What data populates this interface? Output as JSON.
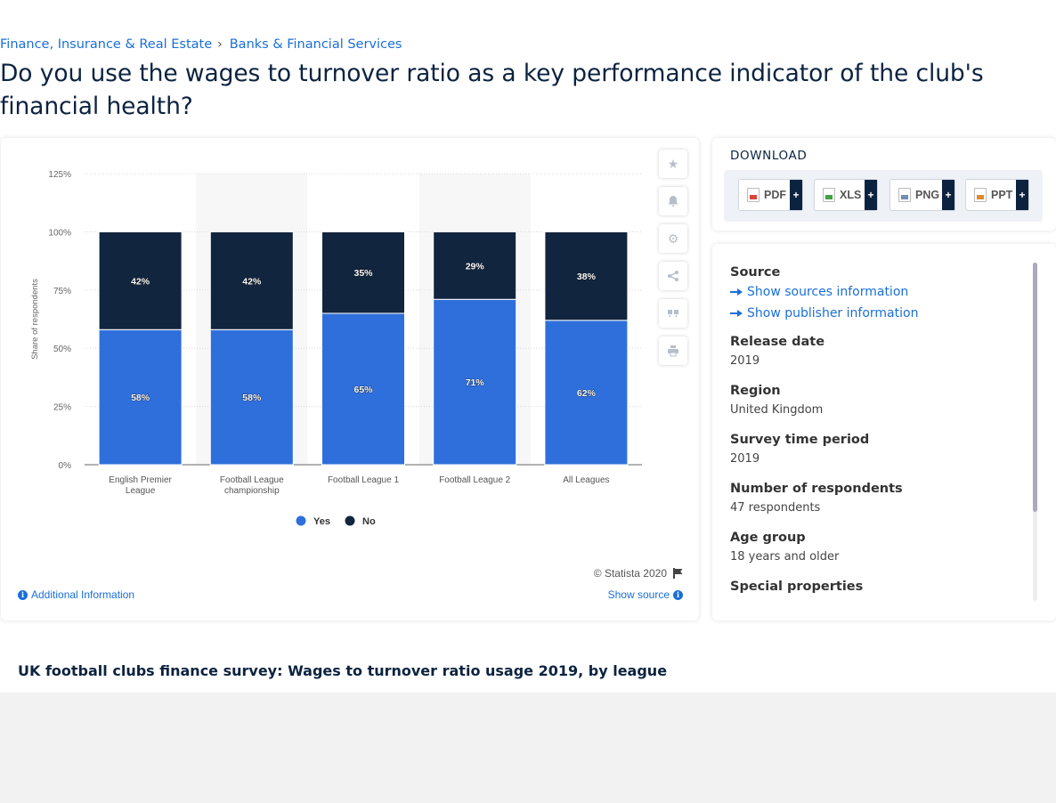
{
  "breadcrumb": {
    "items": [
      "Finance, Insurance & Real Estate",
      "Banks & Financial Services"
    ],
    "separator": "›"
  },
  "page_title": "Do you use the wages to turnover ratio as a key performance indicator of the club's financial health?",
  "chart_data": {
    "type": "bar",
    "stacked": true,
    "categories": [
      "English Premier League",
      "Football League championship",
      "Football League 1",
      "Football League 2",
      "All Leagues"
    ],
    "category_lines": [
      [
        "English Premier",
        "League"
      ],
      [
        "Football League",
        "championship"
      ],
      [
        "Football League 1"
      ],
      [
        "Football League 2"
      ],
      [
        "All Leagues"
      ]
    ],
    "series": [
      {
        "name": "Yes",
        "values": [
          58,
          58,
          65,
          71,
          62
        ],
        "labels": [
          "58%",
          "58%",
          "65%",
          "71%",
          "62%"
        ],
        "color": "#2f6fdb"
      },
      {
        "name": "No",
        "values": [
          42,
          42,
          35,
          29,
          38
        ],
        "labels": [
          "42%",
          "42%",
          "35%",
          "29%",
          "38%"
        ],
        "color": "#12253f"
      }
    ],
    "ylabel": "Share of respondents",
    "ylim": [
      0,
      125
    ],
    "yticks": [
      0,
      25,
      50,
      75,
      100,
      125
    ],
    "ytick_labels": [
      "0%",
      "25%",
      "50%",
      "75%",
      "100%",
      "125%"
    ],
    "legend": [
      "Yes",
      "No"
    ],
    "legend_position": "bottom-center",
    "grid": true
  },
  "chart_card": {
    "credit": "© Statista 2020",
    "additional_info": "Additional Information",
    "show_source": "Show source"
  },
  "download": {
    "title": "DOWNLOAD",
    "buttons": [
      {
        "label": "PDF",
        "color": "#d9443f"
      },
      {
        "label": "XLS",
        "color": "#43a047"
      },
      {
        "label": "PNG",
        "color": "#6f8fb3"
      },
      {
        "label": "PPT",
        "color": "#e0892c"
      }
    ],
    "plus": "+"
  },
  "meta": {
    "source_label": "Source",
    "show_sources": "Show sources information",
    "show_publisher": "Show publisher information",
    "release_label": "Release date",
    "release_value": "2019",
    "region_label": "Region",
    "region_value": "United Kingdom",
    "survey_label": "Survey time period",
    "survey_value": "2019",
    "respondents_label": "Number of respondents",
    "respondents_value": "47 respondents",
    "age_label": "Age group",
    "age_value": "18 years and older",
    "special_label": "Special properties"
  },
  "subtitle": "UK football clubs finance survey: Wages to turnover ratio usage 2019, by league"
}
